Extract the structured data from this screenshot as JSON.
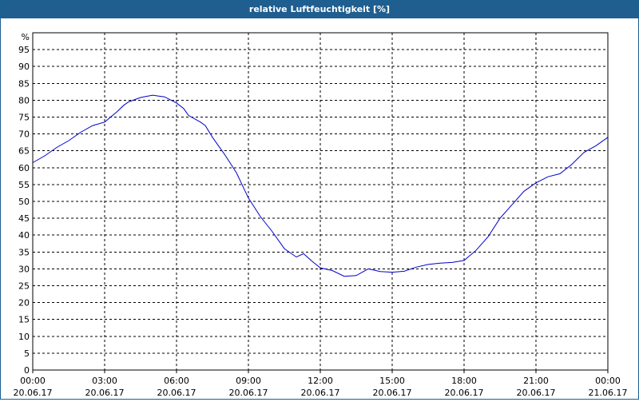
{
  "window": {
    "title": "relative Luftfeuchtigkeit [%]"
  },
  "colors": {
    "title_bar": "#1f5e8f",
    "title_text": "#ffffff",
    "line": "#0000cc",
    "grid": "#000000",
    "axis": "#000000"
  },
  "chart_data": {
    "type": "line",
    "title": "relative Luftfeuchtigkeit [%]",
    "ylabel": "%",
    "xlabel": "",
    "ylim": [
      0,
      100
    ],
    "xlim_hours": [
      0,
      24
    ],
    "y_ticks": [
      0,
      5,
      10,
      15,
      20,
      25,
      30,
      35,
      40,
      45,
      50,
      55,
      60,
      65,
      70,
      75,
      80,
      85,
      90,
      95
    ],
    "x_ticks": [
      {
        "hour": 0,
        "time": "00:00",
        "date": "20.06.17"
      },
      {
        "hour": 3,
        "time": "03:00",
        "date": "20.06.17"
      },
      {
        "hour": 6,
        "time": "06:00",
        "date": "20.06.17"
      },
      {
        "hour": 9,
        "time": "09:00",
        "date": "20.06.17"
      },
      {
        "hour": 12,
        "time": "12:00",
        "date": "20.06.17"
      },
      {
        "hour": 15,
        "time": "15:00",
        "date": "20.06.17"
      },
      {
        "hour": 18,
        "time": "18:00",
        "date": "20.06.17"
      },
      {
        "hour": 21,
        "time": "21:00",
        "date": "20.06.17"
      },
      {
        "hour": 24,
        "time": "00:00",
        "date": "21.06.17"
      }
    ],
    "grid": true,
    "grid_style": "dashed",
    "series": [
      {
        "name": "",
        "x": [
          0,
          0.5,
          1.0,
          1.5,
          2.0,
          2.5,
          3.0,
          3.5,
          3.8,
          4.0,
          4.5,
          5.0,
          5.5,
          6.0,
          6.3,
          6.5,
          7.0,
          7.2,
          7.5,
          8.0,
          8.5,
          9.0,
          9.5,
          10.0,
          10.5,
          11.0,
          11.3,
          11.7,
          12.0,
          12.5,
          13.0,
          13.5,
          14.0,
          14.5,
          15.0,
          15.5,
          16.0,
          16.5,
          17.0,
          17.5,
          18.0,
          18.5,
          19.0,
          19.5,
          20.0,
          20.5,
          21.0,
          21.5,
          22.0,
          22.5,
          23.0,
          23.5,
          24.0
        ],
        "values": [
          61.5,
          63.5,
          66,
          68,
          70.5,
          72.5,
          73.5,
          76.5,
          78.5,
          79.5,
          80.8,
          81.5,
          81.0,
          79.2,
          77.5,
          75.5,
          73.5,
          72.5,
          69,
          64,
          58.5,
          51,
          45.5,
          41,
          36,
          33.5,
          34.5,
          32,
          30.3,
          29.5,
          27.8,
          28.0,
          30,
          29.2,
          29.0,
          29.3,
          30.5,
          31.3,
          31.7,
          31.9,
          32.5,
          35.5,
          39.5,
          45,
          49,
          53,
          55.5,
          57.3,
          58.2,
          61,
          64.5,
          66.5,
          69
        ]
      }
    ]
  }
}
